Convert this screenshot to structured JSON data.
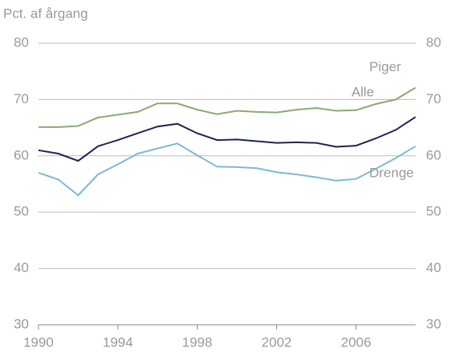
{
  "chart_data": {
    "type": "line",
    "y_label": "Pct. af årgang",
    "x": [
      1990,
      1991,
      1992,
      1993,
      1994,
      1995,
      1996,
      1997,
      1998,
      1999,
      2000,
      2001,
      2002,
      2003,
      2004,
      2005,
      2006,
      2007,
      2008,
      2009
    ],
    "xlim": [
      1990,
      2009
    ],
    "xticks": [
      1990,
      1994,
      1998,
      2002,
      2006
    ],
    "ylim": [
      30,
      80
    ],
    "yticks": [
      30,
      40,
      50,
      60,
      70,
      80
    ],
    "grid": true,
    "series": [
      {
        "name": "Piger",
        "color": "#8aab6e",
        "values": [
          65.1,
          65.1,
          65.3,
          66.8,
          67.3,
          67.8,
          69.3,
          69.3,
          68.2,
          67.4,
          68.0,
          67.8,
          67.7,
          68.2,
          68.5,
          68.0,
          68.1,
          69.2,
          70.0,
          72.1
        ]
      },
      {
        "name": "Alle",
        "color": "#1c2650",
        "values": [
          61.0,
          60.4,
          59.1,
          61.7,
          62.8,
          64.0,
          65.2,
          65.7,
          64.0,
          62.8,
          62.9,
          62.6,
          62.3,
          62.4,
          62.3,
          61.6,
          61.8,
          63.1,
          64.6,
          66.9
        ]
      },
      {
        "name": "Drenge",
        "color": "#7db9d4",
        "values": [
          57.0,
          55.8,
          53.0,
          56.7,
          58.5,
          60.4,
          61.3,
          62.2,
          60.1,
          58.1,
          58.0,
          57.8,
          57.1,
          56.7,
          56.2,
          55.6,
          55.9,
          57.7,
          59.6,
          61.7
        ]
      }
    ]
  }
}
